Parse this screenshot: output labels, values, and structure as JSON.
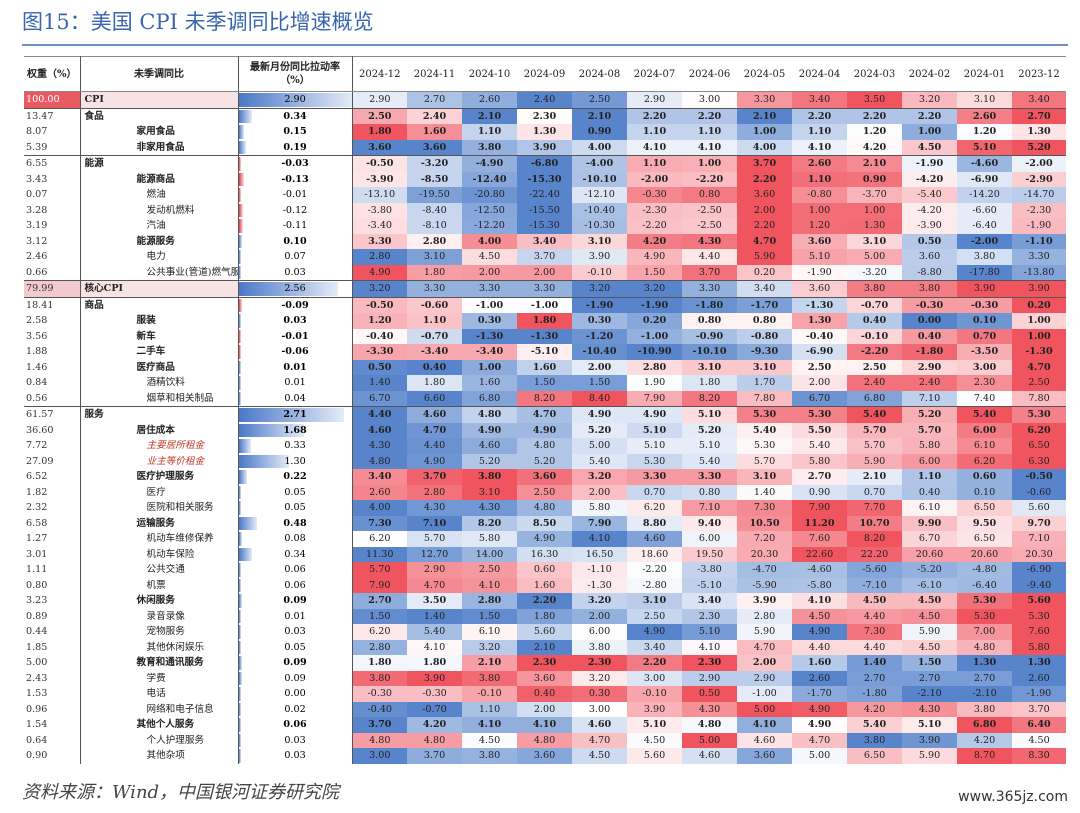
{
  "title": "图15：美国 CPI 未季调同比增速概览",
  "source": "资料来源：Wind，中国银河证券研究院",
  "watermark": "www.365jz.com",
  "chart_data": {
    "type": "table",
    "columns": {
      "weight": "权重（%）",
      "name": "未季调同比",
      "pull": "最新月份同比拉动率（%）",
      "months": [
        "2024-12",
        "2024-11",
        "2024-10",
        "2024-09",
        "2024-08",
        "2024-07",
        "2024-06",
        "2024-05",
        "2024-04",
        "2024-03",
        "2024-02",
        "2024-01",
        "2023-12"
      ]
    },
    "rows": [
      {
        "weight": "100.00",
        "name": "CPI",
        "pull": "2.90",
        "values": [
          2.9,
          2.7,
          2.6,
          2.4,
          2.5,
          2.9,
          3.0,
          3.3,
          3.4,
          3.5,
          3.2,
          3.1,
          3.4
        ],
        "level": 0,
        "bold": false,
        "section": false
      },
      {
        "weight": "13.47",
        "name": "食品",
        "pull": "0.34",
        "values": [
          2.5,
          2.4,
          2.1,
          2.3,
          2.1,
          2.2,
          2.2,
          2.1,
          2.2,
          2.2,
          2.2,
          2.6,
          2.7
        ],
        "level": 1,
        "bold": true,
        "section": true
      },
      {
        "weight": "8.07",
        "name": "家用食品",
        "pull": "0.15",
        "values": [
          1.8,
          1.6,
          1.1,
          1.3,
          0.9,
          1.1,
          1.1,
          1.0,
          1.1,
          1.2,
          1.0,
          1.2,
          1.3
        ],
        "level": 2,
        "bold": true
      },
      {
        "weight": "5.39",
        "name": "非家用食品",
        "pull": "0.19",
        "values": [
          3.6,
          3.6,
          3.8,
          3.9,
          4.0,
          4.1,
          4.1,
          4.0,
          4.1,
          4.2,
          4.5,
          5.1,
          5.2
        ],
        "level": 2,
        "bold": true
      },
      {
        "weight": "6.55",
        "name": "能源",
        "pull": "-0.03",
        "values": [
          -0.5,
          -3.2,
          -4.9,
          -6.8,
          -4.0,
          1.1,
          1.0,
          3.7,
          2.6,
          2.1,
          -1.9,
          -4.6,
          -2.0
        ],
        "level": 1,
        "bold": true,
        "section": true
      },
      {
        "weight": "3.43",
        "name": "能源商品",
        "pull": "-0.13",
        "values": [
          -3.9,
          -8.5,
          -12.4,
          -15.3,
          -10.1,
          -2.0,
          -2.2,
          2.2,
          1.1,
          0.9,
          -4.2,
          -6.9,
          -2.9
        ],
        "level": 2,
        "bold": true
      },
      {
        "weight": "0.07",
        "name": "燃油",
        "pull": "-0.01",
        "values": [
          -13.1,
          -19.5,
          -20.8,
          -22.4,
          -12.1,
          -0.3,
          0.8,
          3.6,
          -0.8,
          -3.7,
          -5.4,
          -14.2,
          -14.7
        ],
        "level": 3
      },
      {
        "weight": "3.28",
        "name": "发动机燃料",
        "pull": "-0.12",
        "values": [
          -3.8,
          -8.4,
          -12.5,
          -15.5,
          -10.4,
          -2.3,
          -2.5,
          2.0,
          1.0,
          1.0,
          -4.2,
          -6.6,
          -2.3
        ],
        "level": 3
      },
      {
        "weight": "3.19",
        "name": "汽油",
        "pull": "-0.11",
        "values": [
          -3.4,
          -8.1,
          -12.2,
          -15.3,
          -10.3,
          -2.2,
          -2.5,
          2.2,
          1.2,
          1.3,
          -3.9,
          -6.4,
          -1.9
        ],
        "level": 3
      },
      {
        "weight": "3.12",
        "name": "能源服务",
        "pull": "0.10",
        "values": [
          3.3,
          2.8,
          4.0,
          3.4,
          3.1,
          4.2,
          4.3,
          4.7,
          3.6,
          3.1,
          0.5,
          -2.0,
          -1.1
        ],
        "level": 2,
        "bold": true
      },
      {
        "weight": "2.46",
        "name": "电力",
        "pull": "0.07",
        "values": [
          2.8,
          3.1,
          4.5,
          3.7,
          3.9,
          4.9,
          4.4,
          5.9,
          5.1,
          5.0,
          3.6,
          3.8,
          3.3
        ],
        "level": 3
      },
      {
        "weight": "0.66",
        "name": "公共事业(管道)燃气服务",
        "pull": "0.03",
        "values": [
          4.9,
          1.8,
          2.0,
          2.0,
          -0.1,
          1.5,
          3.7,
          0.2,
          -1.9,
          -3.2,
          -8.8,
          -17.8,
          -13.8
        ],
        "level": 3
      },
      {
        "weight": "79.99",
        "name": "核心CPI",
        "pull": "2.56",
        "values": [
          3.2,
          3.3,
          3.3,
          3.3,
          3.2,
          3.2,
          3.3,
          3.4,
          3.6,
          3.8,
          3.8,
          3.9,
          3.9
        ],
        "level": 0,
        "bold": false,
        "section": true
      },
      {
        "weight": "18.41",
        "name": "商品",
        "pull": "-0.09",
        "values": [
          -0.5,
          -0.6,
          -1.0,
          -1.0,
          -1.9,
          -1.9,
          -1.8,
          -1.7,
          -1.3,
          -0.7,
          -0.3,
          -0.3,
          0.2
        ],
        "level": 1,
        "bold": true,
        "section": true
      },
      {
        "weight": "2.58",
        "name": "服装",
        "pull": "0.03",
        "values": [
          1.2,
          1.1,
          0.3,
          1.8,
          0.3,
          0.2,
          0.8,
          0.8,
          1.3,
          0.4,
          0.0,
          0.1,
          1.0
        ],
        "level": 2,
        "bold": true
      },
      {
        "weight": "3.56",
        "name": "新车",
        "pull": "-0.01",
        "values": [
          -0.4,
          -0.7,
          -1.3,
          -1.3,
          -1.2,
          -1.0,
          -0.9,
          -0.8,
          -0.4,
          -0.1,
          0.4,
          0.7,
          1.0
        ],
        "level": 2,
        "bold": true
      },
      {
        "weight": "1.88",
        "name": "二手车",
        "pull": "-0.06",
        "values": [
          -3.3,
          -3.4,
          -3.4,
          -5.1,
          -10.4,
          -10.9,
          -10.1,
          -9.3,
          -6.9,
          -2.2,
          -1.8,
          -3.5,
          -1.3
        ],
        "level": 2,
        "bold": true
      },
      {
        "weight": "1.46",
        "name": "医疗商品",
        "pull": "0.01",
        "values": [
          0.5,
          0.4,
          1.0,
          1.6,
          2.0,
          2.8,
          3.1,
          3.1,
          2.5,
          2.5,
          2.9,
          3.0,
          4.7
        ],
        "level": 2,
        "bold": true
      },
      {
        "weight": "0.84",
        "name": "酒精饮料",
        "pull": "0.01",
        "values": [
          1.4,
          1.8,
          1.6,
          1.5,
          1.5,
          1.9,
          1.8,
          1.7,
          2.0,
          2.4,
          2.4,
          2.3,
          2.5
        ],
        "level": 3
      },
      {
        "weight": "0.56",
        "name": "烟草和相关制品",
        "pull": "0.04",
        "values": [
          6.7,
          6.6,
          6.8,
          8.2,
          8.4,
          7.9,
          8.2,
          7.8,
          6.7,
          6.8,
          7.1,
          7.4,
          7.8
        ],
        "level": 3
      },
      {
        "weight": "61.57",
        "name": "服务",
        "pull": "2.71",
        "values": [
          4.4,
          4.6,
          4.8,
          4.7,
          4.9,
          4.9,
          5.1,
          5.3,
          5.3,
          5.4,
          5.2,
          5.4,
          5.3
        ],
        "level": 1,
        "bold": true,
        "section": true
      },
      {
        "weight": "36.60",
        "name": "居住成本",
        "pull": "1.68",
        "values": [
          4.6,
          4.7,
          4.9,
          4.9,
          5.2,
          5.1,
          5.2,
          5.4,
          5.5,
          5.7,
          5.7,
          6.0,
          6.2
        ],
        "level": 2,
        "bold": true
      },
      {
        "weight": "7.72",
        "name": "主要居所租金",
        "pull": "0.33",
        "values": [
          4.3,
          4.4,
          4.6,
          4.8,
          5.0,
          5.1,
          5.1,
          5.3,
          5.4,
          5.7,
          5.8,
          6.1,
          6.5
        ],
        "level": 3,
        "italic": true
      },
      {
        "weight": "27.09",
        "name": "业主等价租金",
        "pull": "1.30",
        "values": [
          4.8,
          4.9,
          5.2,
          5.2,
          5.4,
          5.3,
          5.4,
          5.7,
          5.8,
          5.9,
          6.0,
          6.2,
          6.3
        ],
        "level": 3,
        "italic": true
      },
      {
        "weight": "6.52",
        "name": "医疗护理服务",
        "pull": "0.22",
        "values": [
          3.4,
          3.7,
          3.8,
          3.6,
          3.2,
          3.3,
          3.3,
          3.1,
          2.7,
          2.1,
          1.1,
          0.6,
          -0.5
        ],
        "level": 2,
        "bold": true
      },
      {
        "weight": "1.82",
        "name": "医疗",
        "pull": "0.05",
        "values": [
          2.6,
          2.8,
          3.1,
          2.5,
          2.0,
          0.7,
          0.8,
          1.4,
          0.9,
          0.7,
          0.4,
          0.1,
          -0.6
        ],
        "level": 3
      },
      {
        "weight": "2.32",
        "name": "医院和相关服务",
        "pull": "0.05",
        "values": [
          4.0,
          4.3,
          4.3,
          4.8,
          5.8,
          6.2,
          7.1,
          7.3,
          7.9,
          7.7,
          6.1,
          6.5,
          5.6
        ],
        "level": 3
      },
      {
        "weight": "6.58",
        "name": "运输服务",
        "pull": "0.48",
        "values": [
          7.3,
          7.1,
          8.2,
          8.5,
          7.9,
          8.8,
          9.4,
          10.5,
          11.2,
          10.7,
          9.9,
          9.5,
          9.7
        ],
        "level": 2,
        "bold": true
      },
      {
        "weight": "1.27",
        "name": "机动车维修保养",
        "pull": "0.08",
        "values": [
          6.2,
          5.7,
          5.8,
          4.9,
          4.1,
          4.6,
          6.0,
          7.2,
          7.6,
          8.2,
          6.7,
          6.5,
          7.1
        ],
        "level": 3
      },
      {
        "weight": "3.01",
        "name": "机动车保险",
        "pull": "0.34",
        "values": [
          11.3,
          12.7,
          14.0,
          16.3,
          16.5,
          18.6,
          19.5,
          20.3,
          22.6,
          22.2,
          20.6,
          20.6,
          20.3
        ],
        "level": 3
      },
      {
        "weight": "1.11",
        "name": "公共交通",
        "pull": "0.06",
        "values": [
          5.7,
          2.9,
          2.5,
          0.6,
          -1.1,
          -2.2,
          -3.8,
          -4.7,
          -4.6,
          -5.6,
          -5.2,
          -4.8,
          -6.9
        ],
        "level": 3
      },
      {
        "weight": "0.80",
        "name": "机票",
        "pull": "0.06",
        "values": [
          7.9,
          4.7,
          4.1,
          1.6,
          -1.3,
          -2.8,
          -5.1,
          -5.9,
          -5.8,
          -7.1,
          -6.1,
          -6.4,
          -9.4
        ],
        "level": 3
      },
      {
        "weight": "3.23",
        "name": "休闲服务",
        "pull": "0.09",
        "values": [
          2.7,
          3.5,
          2.8,
          2.2,
          3.2,
          3.1,
          3.4,
          3.9,
          4.1,
          4.5,
          4.5,
          5.3,
          5.6
        ],
        "level": 2,
        "bold": true
      },
      {
        "weight": "0.89",
        "name": "录音录像",
        "pull": "0.01",
        "values": [
          1.5,
          1.4,
          1.5,
          1.8,
          2.0,
          2.5,
          2.3,
          2.8,
          4.5,
          4.4,
          4.5,
          5.3,
          5.3
        ],
        "level": 3
      },
      {
        "weight": "0.44",
        "name": "宠物服务",
        "pull": "0.03",
        "values": [
          6.2,
          5.4,
          6.1,
          5.6,
          6.0,
          4.9,
          5.1,
          5.9,
          4.9,
          7.3,
          5.9,
          7.0,
          7.6
        ],
        "level": 3
      },
      {
        "weight": "1.85",
        "name": "其他休闲娱乐",
        "pull": "0.05",
        "values": [
          2.8,
          4.1,
          3.2,
          2.1,
          3.8,
          3.4,
          4.1,
          4.7,
          4.4,
          4.4,
          4.5,
          4.8,
          5.8
        ],
        "level": 3
      },
      {
        "weight": "5.00",
        "name": "教育和通讯服务",
        "pull": "0.09",
        "values": [
          1.8,
          1.8,
          2.1,
          2.3,
          2.3,
          2.2,
          2.3,
          2.0,
          1.6,
          1.4,
          1.5,
          1.3,
          1.3
        ],
        "level": 2,
        "bold": true
      },
      {
        "weight": "2.43",
        "name": "学费",
        "pull": "0.09",
        "values": [
          3.8,
          3.9,
          3.8,
          3.6,
          3.2,
          3.0,
          2.9,
          2.9,
          2.6,
          2.7,
          2.7,
          2.7,
          2.6
        ],
        "level": 3
      },
      {
        "weight": "1.53",
        "name": "电话",
        "pull": "0.00",
        "values": [
          -0.3,
          -0.3,
          -0.1,
          0.4,
          0.3,
          -0.1,
          0.5,
          -1.0,
          -1.7,
          -1.8,
          -2.1,
          -2.1,
          -1.9
        ],
        "level": 3
      },
      {
        "weight": "0.96",
        "name": "网络和电子信息",
        "pull": "0.02",
        "values": [
          -0.4,
          -0.7,
          1.1,
          2.0,
          3.0,
          3.9,
          4.3,
          5.0,
          4.9,
          4.2,
          4.3,
          3.8,
          3.7
        ],
        "level": 3
      },
      {
        "weight": "1.54",
        "name": "其他个人服务",
        "pull": "0.06",
        "values": [
          3.7,
          4.2,
          4.1,
          4.1,
          4.6,
          5.1,
          4.8,
          4.1,
          4.9,
          5.4,
          5.1,
          6.8,
          6.4
        ],
        "level": 2,
        "bold": true
      },
      {
        "weight": "0.64",
        "name": "个人护理服务",
        "pull": "0.03",
        "values": [
          4.8,
          4.8,
          4.5,
          4.8,
          4.7,
          4.5,
          5.0,
          4.6,
          4.7,
          3.8,
          3.9,
          4.2,
          4.5
        ],
        "level": 3
      },
      {
        "weight": "0.90",
        "name": "其他杂项",
        "pull": "0.03",
        "values": [
          3.0,
          3.7,
          3.8,
          3.6,
          4.5,
          5.6,
          4.6,
          3.6,
          5.0,
          6.5,
          5.9,
          8.7,
          8.3
        ],
        "level": 3
      }
    ],
    "colors": {
      "low": "#4f7ec9",
      "mid": "#ffffff",
      "high": "#ef4b57",
      "pull_bar": "#4a78c8",
      "neg_bar": "#e53c45",
      "header_cpi": "#e95b63"
    }
  }
}
